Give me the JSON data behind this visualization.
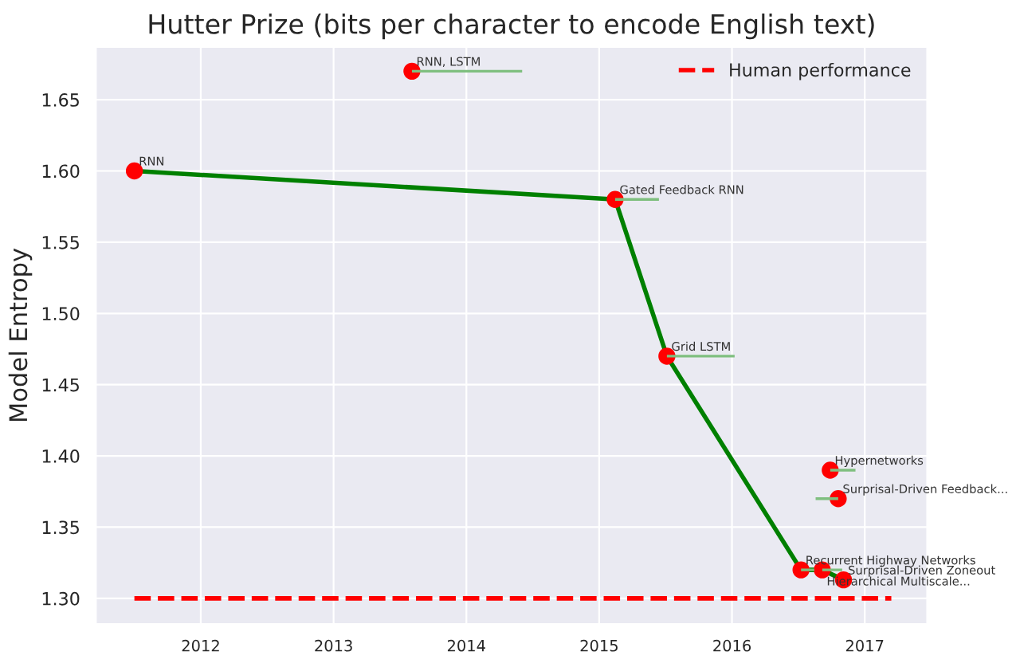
{
  "chart_data": {
    "type": "scatter",
    "title": "Hutter Prize (bits per character to encode English text)",
    "ylabel": "Model Entropy",
    "series": [
      {
        "color": "#ff0000",
        "marker": "circle",
        "x": [
          2011.5,
          2013.59,
          2015.12,
          2015.51,
          2016.74,
          2016.8,
          2016.52,
          2016.68,
          2016.84
        ],
        "values": [
          1.6,
          1.67,
          1.58,
          1.47,
          1.39,
          1.37,
          1.32,
          1.32,
          1.313
        ],
        "xerrors": [
          null,
          [
            2013.59,
            2014.42
          ],
          [
            2015.12,
            2015.45
          ],
          [
            2015.51,
            2016.02
          ],
          [
            2016.74,
            2016.93
          ],
          [
            2016.63,
            2016.8
          ],
          [
            2016.52,
            2016.62
          ],
          [
            2016.68,
            2016.83
          ],
          null
        ]
      },
      {
        "type": "line",
        "color": "#008000",
        "x": [
          2011.5,
          2015.12,
          2015.51,
          2016.52,
          2016.68,
          2016.84
        ],
        "values": [
          1.6,
          1.58,
          1.47,
          1.32,
          1.32,
          1.313
        ]
      },
      {
        "type": "line",
        "name": "Human performance",
        "color": "#ff0000",
        "line_style": "dashed",
        "x": [
          2011.5,
          2017.2
        ],
        "values": [
          1.3,
          1.3
        ]
      }
    ],
    "annotations": [
      {
        "text": "RNN",
        "x": 2011.5,
        "y": 1.6
      },
      {
        "text": "RNN, LSTM",
        "x": 2013.59,
        "y": 1.67
      },
      {
        "text": "Gated Feedback RNN",
        "x": 2015.12,
        "y": 1.58
      },
      {
        "text": "Grid LSTM",
        "x": 2015.51,
        "y": 1.47
      },
      {
        "text": "Hypernetworks",
        "x": 2016.74,
        "y": 1.39
      },
      {
        "text": "Surprisal-Driven Feedback...",
        "x": 2016.8,
        "y": 1.37
      },
      {
        "text": "Recurrent Highway Networks",
        "x": 2016.52,
        "y": 1.32
      },
      {
        "text": "Hierarchical Multiscale...",
        "x": 2016.68,
        "y": 1.32
      },
      {
        "text": "Surprisal-Driven Zoneout",
        "x": 2016.84,
        "y": 1.313
      }
    ],
    "xlim": [
      2011.21,
      2017.47
    ],
    "xticks": [
      2012,
      2013,
      2014,
      2015,
      2016,
      2017
    ],
    "ylim": [
      1.282,
      1.687
    ],
    "yticks": [
      {
        "value": 1.3,
        "label": "1.30"
      },
      {
        "value": 1.35,
        "label": "1.35"
      },
      {
        "value": 1.4,
        "label": "1.40"
      },
      {
        "value": 1.45,
        "label": "1.45"
      },
      {
        "value": 1.5,
        "label": "1.50"
      },
      {
        "value": 1.55,
        "label": "1.55"
      },
      {
        "value": 1.6,
        "label": "1.60"
      },
      {
        "value": 1.65,
        "label": "1.65"
      }
    ],
    "grid": true,
    "legend": "top right"
  }
}
